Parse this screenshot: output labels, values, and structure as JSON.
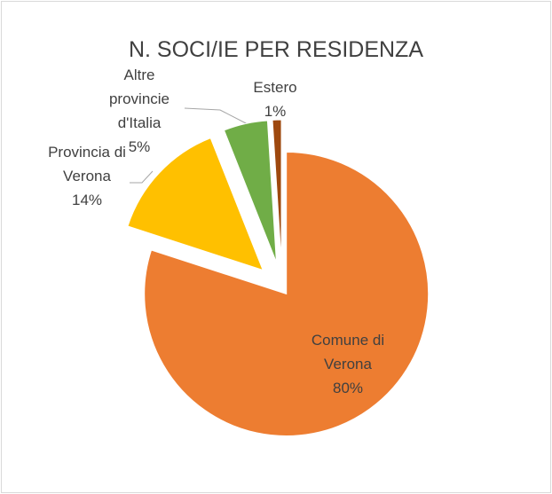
{
  "chart_data": {
    "type": "pie",
    "title": "N. SOCI/IE PER RESIDENZA",
    "categories": [
      "Comune di Verona",
      "Provincia di Verona",
      "Altre provincie d'Italia",
      "Estero"
    ],
    "values": [
      80,
      14,
      5,
      1
    ],
    "value_labels": [
      "80%",
      "14%",
      "5%",
      "1%"
    ],
    "colors": [
      "#ed7d31",
      "#ffc000",
      "#70ad47",
      "#9e480e"
    ]
  }
}
